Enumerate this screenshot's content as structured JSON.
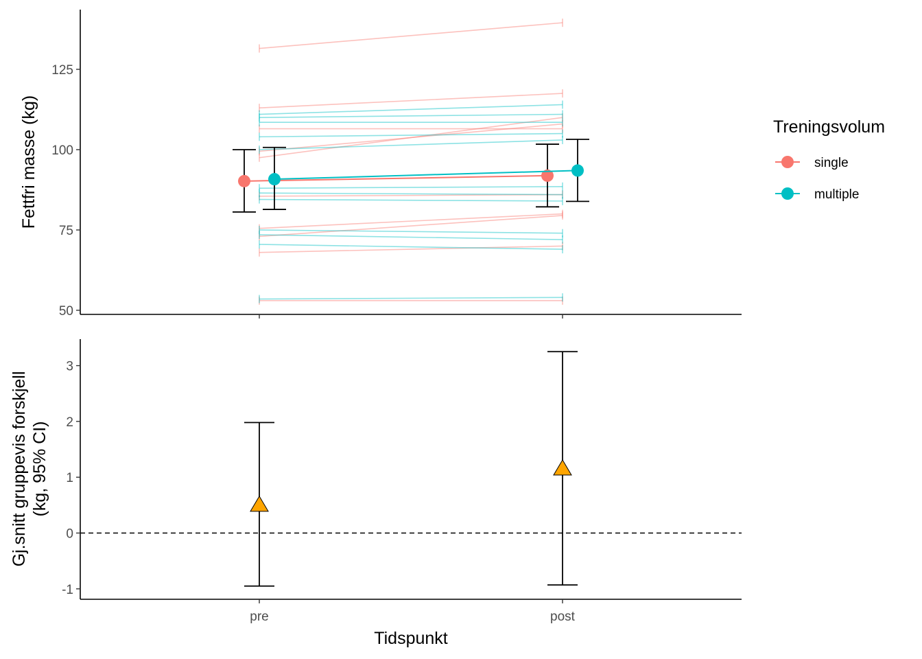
{
  "chart_data": [
    {
      "type": "line",
      "panel": "top",
      "x_categories": [
        "pre",
        "post"
      ],
      "ylabel": "Fettfri masse (kg)",
      "yticks": [
        50,
        75,
        100,
        125
      ],
      "ylim": [
        48.5,
        143
      ],
      "grid": false,
      "legend": {
        "title": "Treningsvolum",
        "placement": "right",
        "entries": [
          {
            "name": "single",
            "color": "#F8766D"
          },
          {
            "name": "multiple",
            "color": "#00BFC4"
          }
        ]
      },
      "series": [
        {
          "name": "single",
          "color": "#F8766D",
          "mean": [
            90.2,
            91.9
          ],
          "ci_low": [
            80.6,
            82.2
          ],
          "ci_high": [
            100.0,
            101.7
          ]
        },
        {
          "name": "multiple",
          "color": "#00BFC4",
          "mean": [
            90.8,
            93.5
          ],
          "ci_low": [
            81.4,
            83.9
          ],
          "ci_high": [
            100.7,
            103.2
          ]
        }
      ],
      "individual_lines": [
        {
          "group": "single",
          "values": [
            131.5,
            139.5
          ]
        },
        {
          "group": "single",
          "values": [
            113.0,
            117.5
          ]
        },
        {
          "group": "single",
          "values": [
            106.5,
            106.5
          ]
        },
        {
          "group": "single",
          "values": [
            99.5,
            108.0
          ]
        },
        {
          "group": "single",
          "values": [
            97.5,
            110.0
          ]
        },
        {
          "group": "single",
          "values": [
            85.5,
            86.0
          ]
        },
        {
          "group": "single",
          "values": [
            75.5,
            80.0
          ]
        },
        {
          "group": "single",
          "values": [
            73.0,
            79.5
          ]
        },
        {
          "group": "single",
          "values": [
            68.0,
            70.0
          ]
        },
        {
          "group": "single",
          "values": [
            53.0,
            53.0
          ]
        },
        {
          "group": "multiple",
          "values": [
            111.0,
            114.0
          ]
        },
        {
          "group": "multiple",
          "values": [
            110.0,
            111.0
          ]
        },
        {
          "group": "multiple",
          "values": [
            108.5,
            108.5
          ]
        },
        {
          "group": "multiple",
          "values": [
            104.0,
            105.0
          ]
        },
        {
          "group": "multiple",
          "values": [
            100.0,
            103.0
          ]
        },
        {
          "group": "multiple",
          "values": [
            88.0,
            88.5
          ]
        },
        {
          "group": "multiple",
          "values": [
            86.5,
            86.0
          ]
        },
        {
          "group": "multiple",
          "values": [
            84.5,
            84.0
          ]
        },
        {
          "group": "multiple",
          "values": [
            75.0,
            74.0
          ]
        },
        {
          "group": "multiple",
          "values": [
            73.5,
            72.0
          ]
        },
        {
          "group": "multiple",
          "values": [
            70.5,
            69.0
          ]
        },
        {
          "group": "multiple",
          "values": [
            53.5,
            54.0
          ]
        }
      ]
    },
    {
      "type": "scatter",
      "panel": "bottom",
      "categories": [
        "pre",
        "post"
      ],
      "xlabel": "Tidspunkt",
      "ylabel": "Gj.snitt gruppevis forskjell\n(kg, 95% CI)",
      "ylabel_lines": [
        "Gj.snitt gruppevis forskjell",
        "(kg, 95% CI)"
      ],
      "yticks": [
        -1,
        0,
        1,
        2,
        3
      ],
      "ylim": [
        -1.2,
        3.45
      ],
      "grid": false,
      "reference_line": {
        "y": 0,
        "style": "dashed"
      },
      "marker": "triangle",
      "marker_color": "#FFA500",
      "values": [
        0.5,
        1.15
      ],
      "ci_low": [
        -0.95,
        -0.93
      ],
      "ci_high": [
        1.98,
        3.25
      ]
    }
  ]
}
